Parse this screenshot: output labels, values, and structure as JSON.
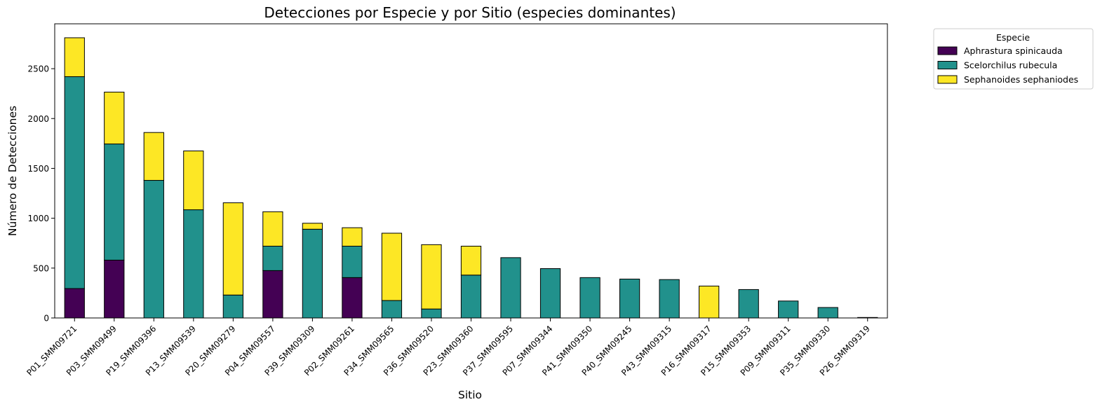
{
  "chart_data": {
    "type": "bar",
    "stacked": true,
    "title": "Detecciones por Especie y por Sitio (especies dominantes)",
    "xlabel": "Sitio",
    "ylabel": "Número de Detecciones",
    "ylim": [
      0,
      2950
    ],
    "yticks": [
      0,
      500,
      1000,
      1500,
      2000,
      2500
    ],
    "legend_title": "Especie",
    "legend_position": "outside-top-right",
    "grid": false,
    "categories": [
      "P01_SMM09721",
      "P03_SMM09499",
      "P19_SMM09396",
      "P13_SMM09539",
      "P20_SMM09279",
      "P04_SMM09557",
      "P39_SMM09309",
      "P02_SMM09261",
      "P34_SMM09565",
      "P36_SMM09520",
      "P23_SMM09360",
      "P37_SMM09595",
      "P07_SMM09344",
      "P41_SMM09350",
      "P40_SMM09245",
      "P43_SMM09315",
      "P16_SMM09317",
      "P15_SMM09353",
      "P09_SMM09311",
      "P35_SMM09330",
      "P26_SMM09319"
    ],
    "series": [
      {
        "name": "Aphrastura spinicauda",
        "color": "#440154",
        "values": [
          295,
          580,
          0,
          0,
          0,
          475,
          0,
          405,
          0,
          0,
          0,
          0,
          0,
          0,
          0,
          0,
          0,
          0,
          0,
          0,
          0
        ]
      },
      {
        "name": "Scelorchilus rubecula",
        "color": "#21918c",
        "values": [
          2125,
          1165,
          1380,
          1085,
          230,
          245,
          890,
          315,
          175,
          90,
          430,
          605,
          495,
          405,
          390,
          385,
          0,
          285,
          170,
          105,
          5
        ]
      },
      {
        "name": "Sephanoides sephaniodes",
        "color": "#fde725",
        "values": [
          390,
          520,
          480,
          590,
          925,
          345,
          60,
          185,
          675,
          645,
          290,
          0,
          0,
          0,
          0,
          0,
          320,
          0,
          0,
          0,
          0
        ]
      }
    ]
  }
}
